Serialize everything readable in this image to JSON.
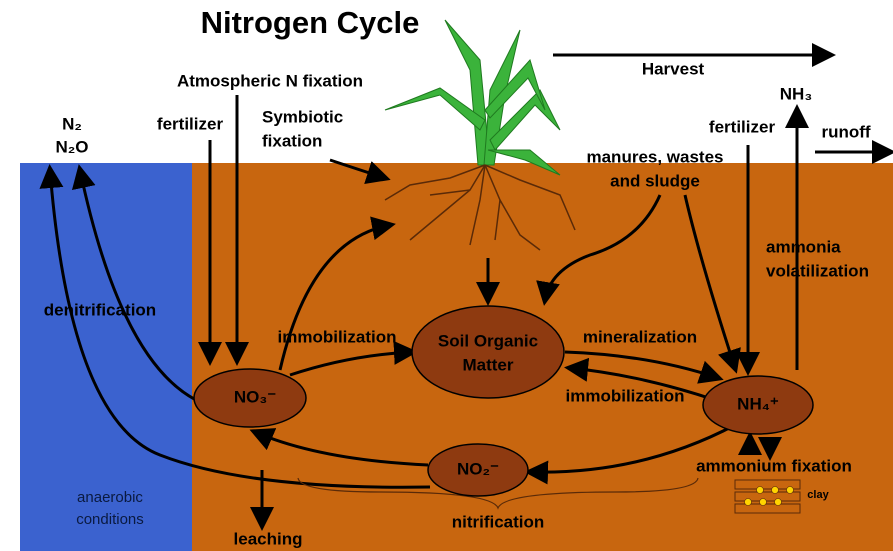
{
  "title": "Nitrogen Cycle",
  "labels": {
    "atmospheric_fixation": "Atmospheric N fixation",
    "fertilizer_left": "fertilizer",
    "symbiotic_fixation": [
      "Symbiotic",
      "fixation"
    ],
    "harvest": "Harvest",
    "nh3": "NH₃",
    "fertilizer_right": "fertilizer",
    "runoff": "runoff",
    "n2": "N₂",
    "n2o": "N₂O",
    "manures": [
      "manures, wastes",
      "and sludge"
    ],
    "ammonia_volatilization": [
      "ammonia",
      "volatilization"
    ],
    "denitrification": "denitrification",
    "immobilization_upper": "immobilization",
    "soil_organic_matter": [
      "Soil Organic",
      "Matter"
    ],
    "mineralization": "mineralization",
    "immobilization_lower": "immobilization",
    "no3": "NO₃⁻",
    "nh4": "NH₄⁺",
    "ammonium_fixation": "ammonium fixation",
    "no2": "NO₂⁻",
    "clay": "clay",
    "anaerobic_conditions": [
      "anaerobic",
      "conditions"
    ],
    "nitrification": "nitrification",
    "leaching": "leaching"
  }
}
